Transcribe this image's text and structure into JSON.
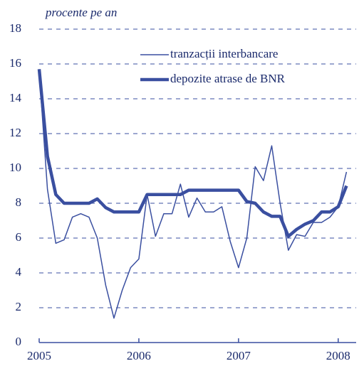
{
  "chart_data": {
    "type": "line",
    "y_label": "procente pe an",
    "x": [
      2005,
      2005.083,
      2005.167,
      2005.25,
      2005.333,
      2005.417,
      2005.5,
      2005.583,
      2005.667,
      2005.75,
      2005.833,
      2005.917,
      2006,
      2006.083,
      2006.167,
      2006.25,
      2006.333,
      2006.417,
      2006.5,
      2006.583,
      2006.667,
      2006.75,
      2006.833,
      2006.917,
      2007,
      2007.083,
      2007.167,
      2007.25,
      2007.333,
      2007.417,
      2007.5,
      2007.583,
      2007.667,
      2007.75,
      2007.833,
      2007.917,
      2008,
      2008.083
    ],
    "series": [
      {
        "name": "tranzacții interbancare",
        "color": "#3a4fa0",
        "width": 1.5,
        "values": [
          15.6,
          8.8,
          5.7,
          5.9,
          7.2,
          7.4,
          7.2,
          6.0,
          3.3,
          1.4,
          3.0,
          4.3,
          4.8,
          8.5,
          6.1,
          7.4,
          7.4,
          9.1,
          7.2,
          8.3,
          7.5,
          7.5,
          7.8,
          5.8,
          4.3,
          6.0,
          10.1,
          9.3,
          11.3,
          8.0,
          5.3,
          6.2,
          6.1,
          6.9,
          6.9,
          7.2,
          7.8,
          9.8
        ]
      },
      {
        "name": "depozite atrase de BNR",
        "color": "#3a4fa0",
        "width": 4.5,
        "values": [
          15.7,
          10.7,
          8.5,
          8.0,
          8.0,
          8.0,
          8.0,
          8.25,
          7.75,
          7.5,
          7.5,
          7.5,
          7.5,
          8.5,
          8.5,
          8.5,
          8.5,
          8.5,
          8.75,
          8.75,
          8.75,
          8.75,
          8.75,
          8.75,
          8.75,
          8.1,
          8.0,
          7.5,
          7.25,
          7.25,
          6.1,
          6.5,
          6.8,
          7.0,
          7.5,
          7.5,
          7.8,
          9.0
        ]
      }
    ],
    "xlim": [
      2005,
      2008.18
    ],
    "xticks": [
      2005,
      2006,
      2007,
      2008
    ],
    "ylim": [
      0,
      18
    ],
    "yticks": [
      0,
      2,
      4,
      6,
      8,
      10,
      12,
      14,
      16,
      18
    ],
    "grid": true,
    "legend": "top"
  }
}
